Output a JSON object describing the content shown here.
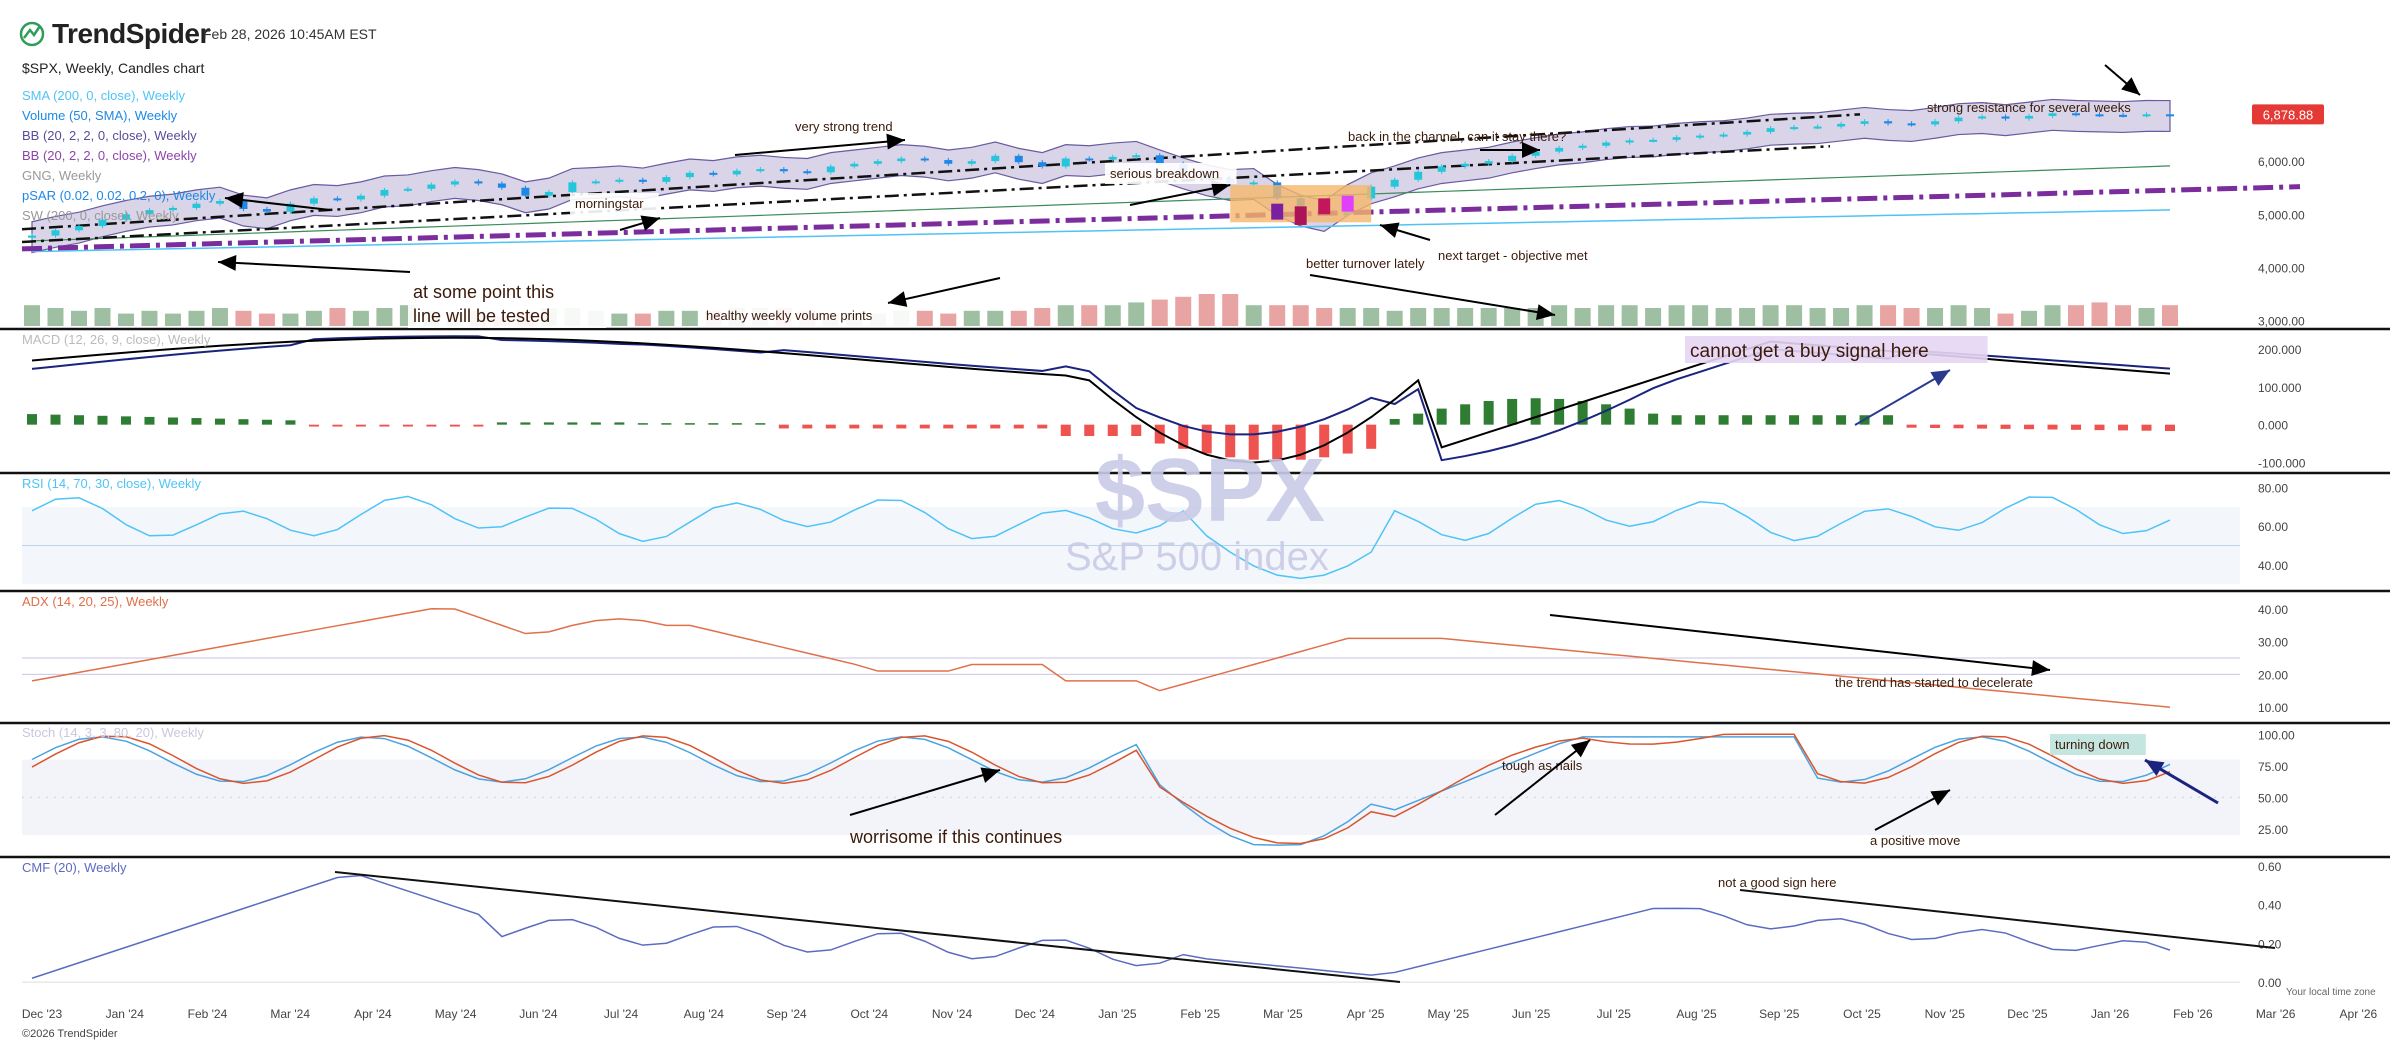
{
  "header": {
    "brand": "TrendSpider",
    "timestamp": "Feb 28, 2026 10:45AM EST",
    "chart_title": "$SPX, Weekly, Candles chart",
    "legend": [
      {
        "label": "SMA (200, 0, close), Weekly",
        "color": "#4fc3f7"
      },
      {
        "label": "Volume (50, SMA), Weekly",
        "color": "#1e88e5"
      },
      {
        "label": "BB (20, 2, 2, 0, close), Weekly",
        "color": "#5b4b9b"
      },
      {
        "label": "BB (20, 2, 2, 0, close), Weekly",
        "color": "#8e44ad"
      },
      {
        "label": "GNG, Weekly",
        "color": "#999999"
      },
      {
        "label": "pSAR (0.02, 0.02, 0.2, 0), Weekly",
        "color": "#1e88e5"
      },
      {
        "label": "SW (200, 0, close), Weekly",
        "color": "#999999"
      }
    ],
    "last_price": "6,878.88"
  },
  "watermark": {
    "ticker": "$SPX",
    "name": "S&P 500 index"
  },
  "footer": {
    "copyright": "©2026 TrendSpider",
    "timezone": "Your local time zone"
  },
  "colors": {
    "up": "#26c6da",
    "down": "#1e88e5",
    "macd_pos": "#2e7d32",
    "macd_neg": "#ef5350",
    "vol_up": "#9fbfa3",
    "vol_down": "#e8a3a3",
    "bb_fill": "#d9d4e8",
    "sma": "#4fc3f7",
    "adx": "#e0704a",
    "stoch_k": "#4ba3e0",
    "stoch_d": "#d9552e",
    "cmf": "#5c6bc0",
    "price_badge": "#e53935",
    "purple": "#7b2d9e"
  },
  "chart_data": [
    {
      "type": "candlestick",
      "title": "$SPX, Weekly, Candles chart",
      "x_labels": [
        "Dec '23",
        "Jan '24",
        "Feb '24",
        "Mar '24",
        "Apr '24",
        "May '24",
        "Jun '24",
        "Jul '24",
        "Aug '24",
        "Sep '24",
        "Oct '24",
        "Nov '24",
        "Dec '24",
        "Jan '25",
        "Feb '25",
        "Mar '25",
        "Apr '25",
        "May '25",
        "Jun '25",
        "Jul '25",
        "Aug '25",
        "Sep '25",
        "Oct '25",
        "Nov '25",
        "Dec '25",
        "Jan '26",
        "Feb '26",
        "Mar '26",
        "Apr '26"
      ],
      "y_ticks": [
        "7,000.00",
        "6,000.00",
        "5,000.00",
        "4,000.00",
        "3,000.00"
      ],
      "y_tick_values": [
        7000,
        6000,
        5000,
        4000,
        3000
      ],
      "ylim": [
        2900,
        7300
      ],
      "close": [
        4600,
        4700,
        4780,
        4900,
        5000,
        5080,
        5120,
        5200,
        5250,
        5100,
        5050,
        5200,
        5300,
        5280,
        5350,
        5460,
        5480,
        5560,
        5620,
        5580,
        5500,
        5350,
        5420,
        5600,
        5620,
        5650,
        5610,
        5700,
        5780,
        5750,
        5820,
        5850,
        5810,
        5790,
        5900,
        5950,
        6000,
        6050,
        6020,
        5950,
        6000,
        6100,
        5980,
        5900,
        6050,
        6030,
        6080,
        6110,
        5950,
        5800,
        5670,
        5580,
        5600,
        5300,
        5100,
        5000,
        5300,
        5520,
        5650,
        5800,
        5900,
        5950,
        6000,
        6100,
        6180,
        6250,
        6290,
        6350,
        6390,
        6400,
        6450,
        6480,
        6500,
        6550,
        6620,
        6640,
        6650,
        6700,
        6750,
        6710,
        6690,
        6750,
        6820,
        6840,
        6800,
        6850,
        6900,
        6880,
        6870,
        6860,
        6880,
        6878.88
      ],
      "annotations": [
        "very strong trend",
        "morningstar",
        "serious breakdown",
        "back in the channel, can it stay there?",
        "strong resistance for several weeks",
        "next target - objective met",
        "better turnover lately",
        "at some point this line will be tested",
        "healthy weekly volume prints"
      ]
    },
    {
      "type": "bar",
      "title": "Volume (50, SMA), Weekly",
      "values": [
        3.6,
        3.5,
        3.4,
        3.5,
        3.3,
        3.4,
        3.3,
        3.4,
        3.5,
        3.4,
        3.3,
        3.3,
        3.4,
        3.5,
        3.4,
        3.5,
        3.6,
        3.4,
        3.3,
        3.4,
        3.2,
        3.4,
        3.5,
        3.5,
        3.4,
        3.3,
        3.3,
        3.4,
        3.4,
        3.4,
        3.5,
        3.5,
        3.5,
        3.4,
        3.3,
        3.3,
        3.3,
        3.4,
        3.4,
        3.3,
        3.4,
        3.4,
        3.4,
        3.5,
        3.6,
        3.6,
        3.6,
        3.7,
        3.8,
        3.9,
        4.0,
        4.0,
        3.6,
        3.6,
        3.6,
        3.5,
        3.5,
        3.5,
        3.4,
        3.5,
        3.5,
        3.5,
        3.5,
        3.5,
        3.5,
        3.6,
        3.5,
        3.6,
        3.6,
        3.5,
        3.6,
        3.6,
        3.5,
        3.5,
        3.6,
        3.6,
        3.5,
        3.5,
        3.6,
        3.6,
        3.5,
        3.5,
        3.6,
        3.5,
        3.3,
        3.4,
        3.6,
        3.6,
        3.7,
        3.6,
        3.5,
        3.6
      ]
    },
    {
      "type": "line",
      "title": "MACD (12, 26, 9, close), Weekly",
      "y_ticks": [
        "200.000",
        "100.000",
        "0.000",
        "-100.000"
      ],
      "y_tick_values": [
        200,
        100,
        0,
        -100
      ],
      "ylim": [
        -120,
        240
      ],
      "annotations": [
        "cannot get a buy signal here"
      ]
    },
    {
      "type": "line",
      "title": "RSI (14, 70, 30, close), Weekly",
      "y_ticks": [
        "80.00",
        "60.00",
        "40.00"
      ],
      "y_tick_values": [
        80,
        60,
        40
      ],
      "ylim": [
        28,
        85
      ]
    },
    {
      "type": "line",
      "title": "ADX (14, 20, 25), Weekly",
      "y_ticks": [
        "40.00",
        "30.00",
        "20.00",
        "10.00"
      ],
      "y_tick_values": [
        40,
        30,
        20,
        10
      ],
      "ylim": [
        6,
        44
      ],
      "annotations": [
        "the trend has started to decelerate"
      ]
    },
    {
      "type": "line",
      "title": "Stoch (14, 3, 3, 80, 20), Weekly",
      "y_ticks": [
        "100.00",
        "75.00",
        "50.00",
        "25.00"
      ],
      "y_tick_values": [
        100,
        75,
        50,
        25
      ],
      "ylim": [
        5,
        105
      ],
      "annotations": [
        "tough as nails",
        "worrisome if this continues",
        "a positive move",
        "turning down"
      ]
    },
    {
      "type": "line",
      "title": "CMF (20), Weekly",
      "y_ticks": [
        "0.60",
        "0.40",
        "0.20",
        "0.00"
      ],
      "y_tick_values": [
        0.6,
        0.4,
        0.2,
        0.0
      ],
      "ylim": [
        -0.02,
        0.62
      ],
      "annotations": [
        "not a good sign here"
      ]
    }
  ]
}
